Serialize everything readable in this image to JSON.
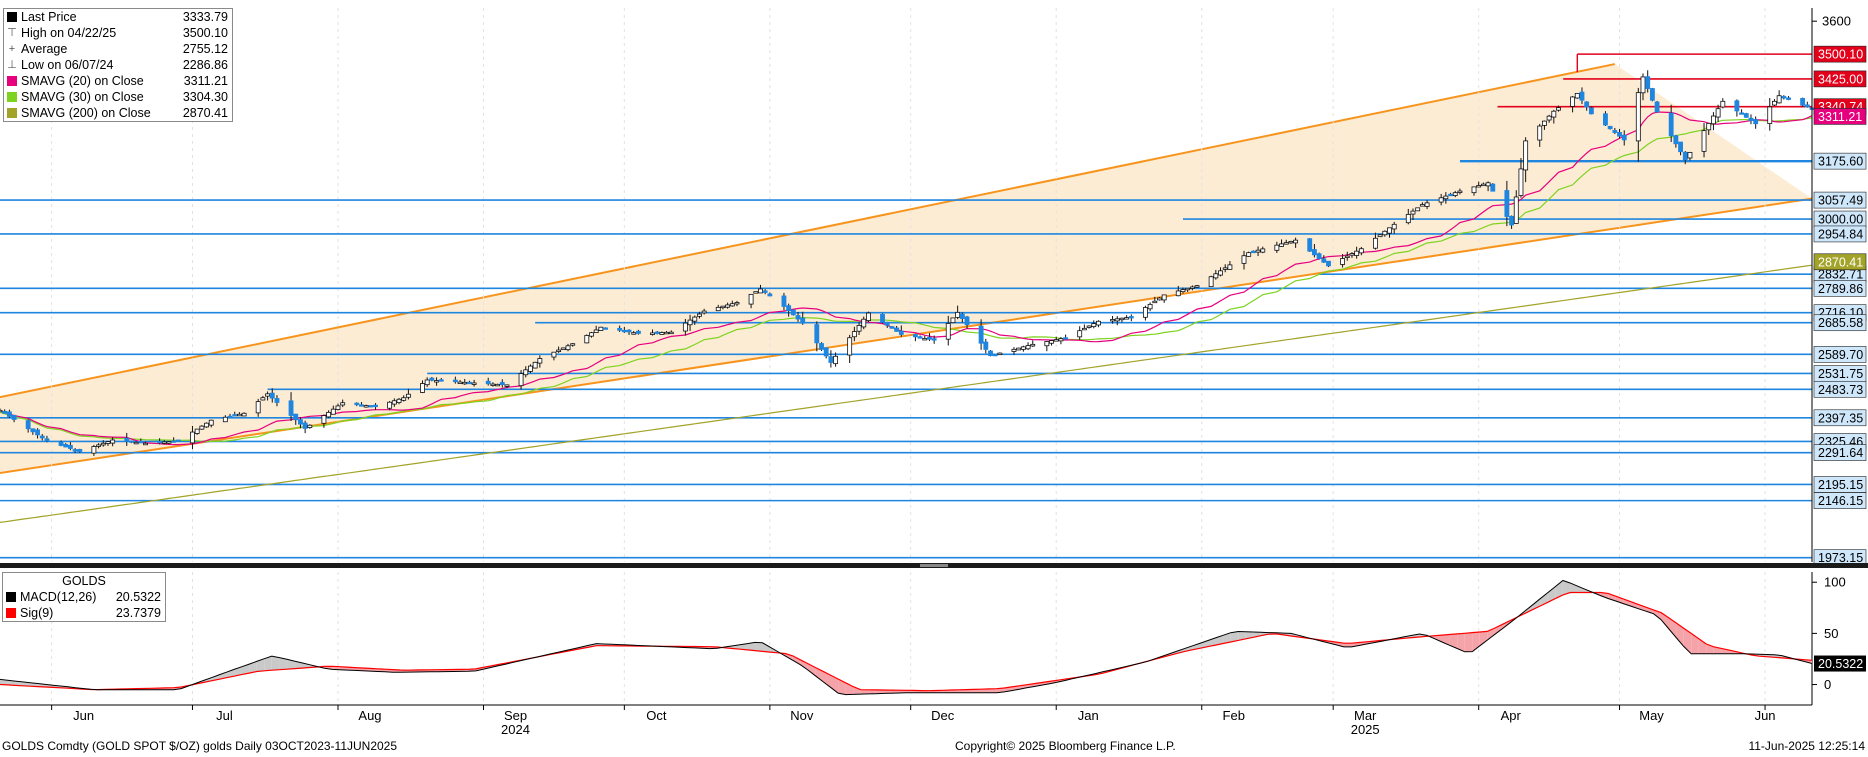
{
  "chart_data": {
    "type": "candlestick",
    "instrument": "GOLDS Comdty (GOLD SPOT $/OZ) golds  Daily 03OCT2023-11JUN2025",
    "copyright": "Copyright© 2025 Bloomberg Finance L.P.",
    "timestamp": "11-Jun-2025 12:25:14",
    "x_axis": {
      "months": [
        {
          "label": "Jun",
          "date": "2024-06-01"
        },
        {
          "label": "Jul",
          "date": "2024-07-01"
        },
        {
          "label": "Aug",
          "date": "2024-08-01"
        },
        {
          "label": "Sep",
          "date": "2024-09-01"
        },
        {
          "label": "Oct",
          "date": "2024-10-01"
        },
        {
          "label": "Nov",
          "date": "2024-11-01"
        },
        {
          "label": "Dec",
          "date": "2024-12-01"
        },
        {
          "label": "Jan",
          "date": "2025-01-01"
        },
        {
          "label": "Feb",
          "date": "2025-02-01"
        },
        {
          "label": "Mar",
          "date": "2025-03-01"
        },
        {
          "label": "Apr",
          "date": "2025-04-01"
        },
        {
          "label": "May",
          "date": "2025-05-01"
        },
        {
          "label": "Jun",
          "date": "2025-06-01"
        }
      ],
      "years": [
        {
          "label": "2024",
          "date": "2024-09-01"
        },
        {
          "label": "2025",
          "date": "2025-03-01"
        }
      ],
      "range": [
        "2024-05-21",
        "2025-06-11"
      ]
    },
    "y_axis": {
      "range": [
        1960,
        3640
      ],
      "ticks": [
        3600
      ],
      "scale": "linear"
    },
    "legend": [
      {
        "label": "Last Price",
        "value": "3333.79",
        "marker": "square",
        "color": "#000000"
      },
      {
        "label": "High on 04/22/25",
        "value": "3500.10",
        "marker": "high",
        "color": "#555555"
      },
      {
        "label": "Average",
        "value": "2755.12",
        "marker": "average",
        "color": "#555555"
      },
      {
        "label": "Low on 06/07/24",
        "value": "2286.86",
        "marker": "low",
        "color": "#555555"
      },
      {
        "label": "SMAVG (20)  on Close",
        "value": "3311.21",
        "marker": "square",
        "color": "#e6007e"
      },
      {
        "label": "SMAVG (30)  on Close",
        "value": "3304.30",
        "marker": "square",
        "color": "#7ed321"
      },
      {
        "label": "SMAVG (200)  on Close",
        "value": "2870.41",
        "marker": "square",
        "color": "#a3a32a"
      }
    ],
    "price_series_points": [
      [
        "2024-05-21",
        2420
      ],
      [
        "2024-05-31",
        2327
      ],
      [
        "2024-06-07",
        2295
      ],
      [
        "2024-06-14",
        2330
      ],
      [
        "2024-06-21",
        2320
      ],
      [
        "2024-06-28",
        2327
      ],
      [
        "2024-07-05",
        2390
      ],
      [
        "2024-07-12",
        2411
      ],
      [
        "2024-07-17",
        2470
      ],
      [
        "2024-07-25",
        2365
      ],
      [
        "2024-08-02",
        2443
      ],
      [
        "2024-08-09",
        2431
      ],
      [
        "2024-08-15",
        2458
      ],
      [
        "2024-08-20",
        2512
      ],
      [
        "2024-08-30",
        2503
      ],
      [
        "2024-09-06",
        2497
      ],
      [
        "2024-09-13",
        2577
      ],
      [
        "2024-09-20",
        2622
      ],
      [
        "2024-09-26",
        2672
      ],
      [
        "2024-10-04",
        2653
      ],
      [
        "2024-10-11",
        2657
      ],
      [
        "2024-10-18",
        2721
      ],
      [
        "2024-10-25",
        2747
      ],
      [
        "2024-10-30",
        2788
      ],
      [
        "2024-11-04",
        2735
      ],
      [
        "2024-11-08",
        2684
      ],
      [
        "2024-11-14",
        2565
      ],
      [
        "2024-11-22",
        2715
      ],
      [
        "2024-11-29",
        2650
      ],
      [
        "2024-12-06",
        2633
      ],
      [
        "2024-12-11",
        2717
      ],
      [
        "2024-12-18",
        2586
      ],
      [
        "2024-12-27",
        2620
      ],
      [
        "2025-01-03",
        2640
      ],
      [
        "2025-01-10",
        2690
      ],
      [
        "2025-01-17",
        2703
      ],
      [
        "2025-01-24",
        2770
      ],
      [
        "2025-01-31",
        2798
      ],
      [
        "2025-02-07",
        2861
      ],
      [
        "2025-02-11",
        2898
      ],
      [
        "2025-02-21",
        2936
      ],
      [
        "2025-02-28",
        2858
      ],
      [
        "2025-03-07",
        2910
      ],
      [
        "2025-03-14",
        2984
      ],
      [
        "2025-03-20",
        3044
      ],
      [
        "2025-03-28",
        3085
      ],
      [
        "2025-04-03",
        3110
      ],
      [
        "2025-04-08",
        2982
      ],
      [
        "2025-04-11",
        3237
      ],
      [
        "2025-04-17",
        3327
      ],
      [
        "2025-04-22",
        3381
      ],
      [
        "2025-04-25",
        3319
      ],
      [
        "2025-05-02",
        3240
      ],
      [
        "2025-05-06",
        3431
      ],
      [
        "2025-05-09",
        3325
      ],
      [
        "2025-05-15",
        3180
      ],
      [
        "2025-05-20",
        3290
      ],
      [
        "2025-05-23",
        3357
      ],
      [
        "2025-05-30",
        3289
      ],
      [
        "2025-06-04",
        3374
      ],
      [
        "2025-06-11",
        3333.79
      ]
    ],
    "channel": {
      "upper": [
        [
          "2024-05-21",
          2460
        ],
        [
          "2025-04-30",
          3470
        ]
      ],
      "lower": [
        [
          "2024-05-21",
          2230
        ],
        [
          "2025-06-11",
          3062
        ]
      ]
    },
    "resistance_levels": [
      {
        "value": 3500.1,
        "label": "3500.10",
        "start": "2025-04-22"
      },
      {
        "value": 3425.0,
        "label": "3425.00",
        "start": "2025-04-19"
      },
      {
        "value": 3340.74,
        "label": "3340.74",
        "start": "2025-04-05"
      }
    ],
    "support_levels": [
      {
        "value": 3175.6,
        "label": "3175.60",
        "start": "2025-03-28"
      },
      {
        "value": 3057.49,
        "label": "3057.49"
      },
      {
        "value": 3000.0,
        "label": "3000.00",
        "start": "2025-01-28"
      },
      {
        "value": 2954.84,
        "label": "2954.84"
      },
      {
        "value": 2832.71,
        "label": "2832.71",
        "start": "2025-02-26"
      },
      {
        "value": 2789.86,
        "label": "2789.86"
      },
      {
        "value": 2716.1,
        "label": "2716.10"
      },
      {
        "value": 2685.58,
        "label": "2685.58",
        "start": "2024-09-12"
      },
      {
        "value": 2589.7,
        "label": "2589.70"
      },
      {
        "value": 2531.75,
        "label": "2531.75",
        "start": "2024-08-20"
      },
      {
        "value": 2483.73,
        "label": "2483.73",
        "start": "2024-07-17"
      },
      {
        "value": 2397.35,
        "label": "2397.35"
      },
      {
        "value": 2325.46,
        "label": "2325.46"
      },
      {
        "value": 2291.64,
        "label": "2291.64"
      },
      {
        "value": 2195.15,
        "label": "2195.15"
      },
      {
        "value": 2146.15,
        "label": "2146.15"
      },
      {
        "value": 1973.15,
        "label": "1973.15"
      }
    ],
    "value_labels": [
      {
        "value": 3311.21,
        "label": "3311.21",
        "color": "#e6007e"
      },
      {
        "value": 2870.41,
        "label": "2870.41",
        "color": "#a3a32a"
      }
    ],
    "macd_panel": {
      "title": "GOLDS",
      "series": [
        {
          "name": "MACD(12,26)",
          "value": "20.5322",
          "color": "#000000"
        },
        {
          "name": "Sig(9)",
          "value": "23.7379",
          "color": "#ff0000"
        }
      ],
      "y_ticks": [
        100,
        50,
        0
      ],
      "y_range": [
        -20,
        110
      ],
      "current_label": "20.5322",
      "macd_points": [
        [
          "2024-05-21",
          5
        ],
        [
          "2024-06-10",
          -5
        ],
        [
          "2024-06-28",
          -5
        ],
        [
          "2024-07-10",
          15
        ],
        [
          "2024-07-18",
          28
        ],
        [
          "2024-07-30",
          15
        ],
        [
          "2024-08-13",
          12
        ],
        [
          "2024-08-30",
          13
        ],
        [
          "2024-09-25",
          40
        ],
        [
          "2024-10-20",
          35
        ],
        [
          "2024-10-30",
          42
        ],
        [
          "2024-11-08",
          18
        ],
        [
          "2024-11-16",
          -10
        ],
        [
          "2024-11-30",
          -8
        ],
        [
          "2024-12-20",
          -8
        ],
        [
          "2025-01-01",
          2
        ],
        [
          "2025-01-20",
          22
        ],
        [
          "2025-02-08",
          52
        ],
        [
          "2025-02-20",
          50
        ],
        [
          "2025-03-04",
          36
        ],
        [
          "2025-03-20",
          50
        ],
        [
          "2025-03-30",
          30
        ],
        [
          "2025-04-09",
          65
        ],
        [
          "2025-04-19",
          102
        ],
        [
          "2025-04-28",
          85
        ],
        [
          "2025-05-09",
          68
        ],
        [
          "2025-05-16",
          30
        ],
        [
          "2025-05-28",
          30
        ],
        [
          "2025-06-04",
          29
        ],
        [
          "2025-06-11",
          20.5322
        ]
      ],
      "signal_points": [
        [
          "2024-05-21",
          0
        ],
        [
          "2024-06-10",
          -5
        ],
        [
          "2024-06-28",
          -3
        ],
        [
          "2024-07-15",
          13
        ],
        [
          "2024-07-30",
          18
        ],
        [
          "2024-08-15",
          14
        ],
        [
          "2024-08-30",
          15
        ],
        [
          "2024-09-25",
          38
        ],
        [
          "2024-10-20",
          37
        ],
        [
          "2024-11-05",
          30
        ],
        [
          "2024-11-20",
          -5
        ],
        [
          "2024-12-05",
          -6
        ],
        [
          "2024-12-20",
          -4
        ],
        [
          "2025-01-10",
          10
        ],
        [
          "2025-01-28",
          32
        ],
        [
          "2025-02-16",
          50
        ],
        [
          "2025-03-04",
          40
        ],
        [
          "2025-03-18",
          46
        ],
        [
          "2025-04-03",
          52
        ],
        [
          "2025-04-20",
          90
        ],
        [
          "2025-04-28",
          90
        ],
        [
          "2025-05-10",
          70
        ],
        [
          "2025-05-20",
          38
        ],
        [
          "2025-05-30",
          28
        ],
        [
          "2025-06-11",
          23.7379
        ]
      ]
    }
  }
}
